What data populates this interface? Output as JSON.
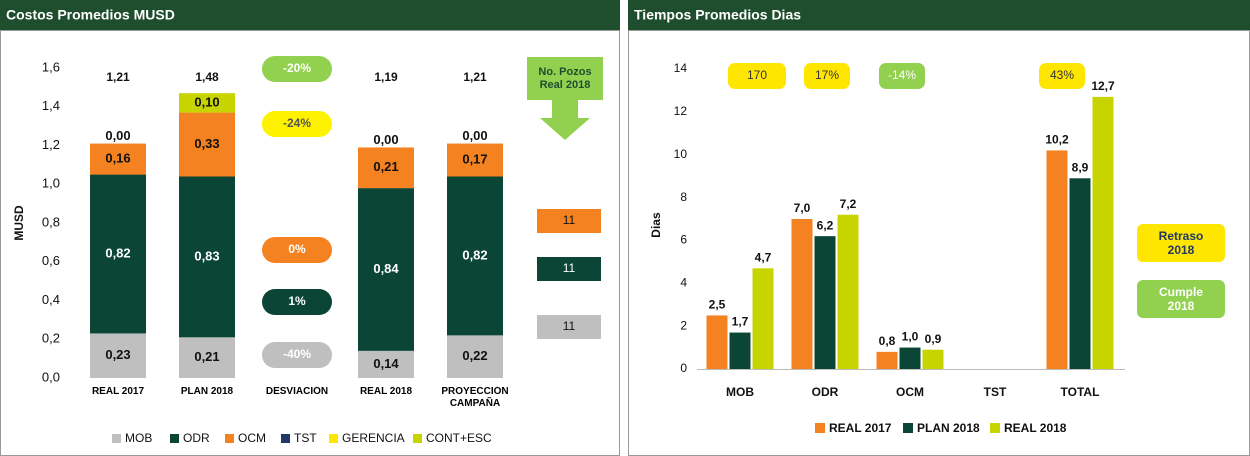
{
  "chart_data": [
    {
      "type": "stacked_bar",
      "title": "Costos Promedios MUSD",
      "y_label": "MUSD",
      "categories": [
        "REAL 2017",
        "PLAN 2018",
        "DESVIACIÓN",
        "REAL 2018",
        "PROYECCIÓN CAMPAÑA"
      ],
      "series": [
        {
          "name": "MOB",
          "color": "#bfbfbf",
          "values": [
            0.23,
            0.21,
            null,
            0.14,
            0.22
          ],
          "value_labels": [
            "0,23",
            "0,21",
            null,
            "0,14",
            "0,22"
          ]
        },
        {
          "name": "ODR",
          "color": "#0b4535",
          "values": [
            0.82,
            0.83,
            null,
            0.84,
            0.82
          ],
          "value_labels": [
            "0,82",
            "0,83",
            null,
            "0,84",
            "0,82"
          ]
        },
        {
          "name": "OCM",
          "color": "#f58220",
          "values": [
            0.16,
            0.33,
            null,
            0.21,
            0.17
          ],
          "value_labels": [
            "0,16",
            "0,33",
            null,
            "0,21",
            "0,17"
          ]
        },
        {
          "name": "TST",
          "color": "#1f3864",
          "values": [
            0,
            0,
            null,
            0,
            0
          ],
          "value_labels": [
            "0,00",
            "0,00",
            null,
            "0,00",
            "0,00"
          ]
        },
        {
          "name": "GERENCIA",
          "color": "#ffe600",
          "values": [
            null,
            null,
            null,
            null,
            null
          ]
        },
        {
          "name": "CONT+ESC",
          "color": "#c8d400",
          "values": [
            null,
            0.1,
            null,
            null,
            null
          ],
          "value_labels": [
            null,
            "0,10",
            null,
            null,
            null
          ]
        }
      ],
      "totals": {
        "values": [
          1.21,
          1.48,
          null,
          1.19,
          1.21
        ],
        "value_labels": [
          "1,21",
          "1,48",
          null,
          "1,19",
          "1,21"
        ]
      },
      "ylim": [
        0,
        1.6
      ],
      "yticks": [
        {
          "value": 0,
          "label": "0,0"
        },
        {
          "value": 0.2,
          "label": "0,2"
        },
        {
          "value": 0.4,
          "label": "0,4"
        },
        {
          "value": 0.6,
          "label": "0,6"
        },
        {
          "value": 0.8,
          "label": "0,8"
        },
        {
          "value": 1.0,
          "label": "1,0"
        },
        {
          "value": 1.2,
          "label": "1,2"
        },
        {
          "value": 1.4,
          "label": "1,4"
        },
        {
          "value": 1.6,
          "label": "1,6"
        }
      ],
      "annotations": [
        {
          "text": "-20%",
          "color": "#92d050"
        },
        {
          "text": "-24%",
          "color": "#fff200"
        },
        {
          "text": "0%",
          "color": "#f58220"
        },
        {
          "text": "1%",
          "color": "#0b4535"
        },
        {
          "text": "-40%",
          "color": "#bfbfbf"
        }
      ],
      "note": {
        "text": "No. Pozos Real 2018",
        "color": "#92d050"
      },
      "wells": [
        {
          "value": 11,
          "color": "#f58220"
        },
        {
          "value": 11,
          "color": "#0b4535"
        },
        {
          "value": 11,
          "color": "#bfbfbf"
        }
      ]
    },
    {
      "type": "grouped_bar",
      "title": "Tiempos Promedios Dias",
      "y_label": "Dias",
      "categories": [
        "MOB",
        "ODR",
        "OCM",
        "TST",
        "TOTAL"
      ],
      "series": [
        {
          "name": "REAL 2017",
          "color": "#f58220",
          "values": [
            2.5,
            7.0,
            0.8,
            null,
            10.2
          ],
          "value_labels": [
            "2,5",
            "7,0",
            "0,8",
            null,
            "10,2"
          ]
        },
        {
          "name": "PLAN 2018",
          "color": "#0b4535",
          "values": [
            1.7,
            6.2,
            1.0,
            null,
            8.9
          ],
          "value_labels": [
            "1,7",
            "6,2",
            "1,0",
            null,
            "8,9"
          ]
        },
        {
          "name": "REAL 2018",
          "color": "#c8d400",
          "values": [
            4.7,
            7.2,
            0.9,
            null,
            12.7
          ],
          "value_labels": [
            "4,7",
            "7,2",
            "0,9",
            null,
            "12,7"
          ]
        }
      ],
      "ylim": [
        0,
        15
      ],
      "yticks": [
        0,
        2,
        4,
        6,
        8,
        10,
        12,
        14
      ],
      "badges": [
        {
          "text": "170",
          "color": "#ffe600"
        },
        {
          "text": "17%",
          "color": "#ffe600"
        },
        {
          "text": "-14%",
          "color": "#92d050"
        },
        {
          "text": "43%",
          "color": "#ffe600"
        }
      ],
      "legend_notes": [
        {
          "text": "Retraso 2018",
          "color": "#ffe600"
        },
        {
          "text": "Cumple 2018",
          "color": "#92d050"
        }
      ]
    }
  ]
}
